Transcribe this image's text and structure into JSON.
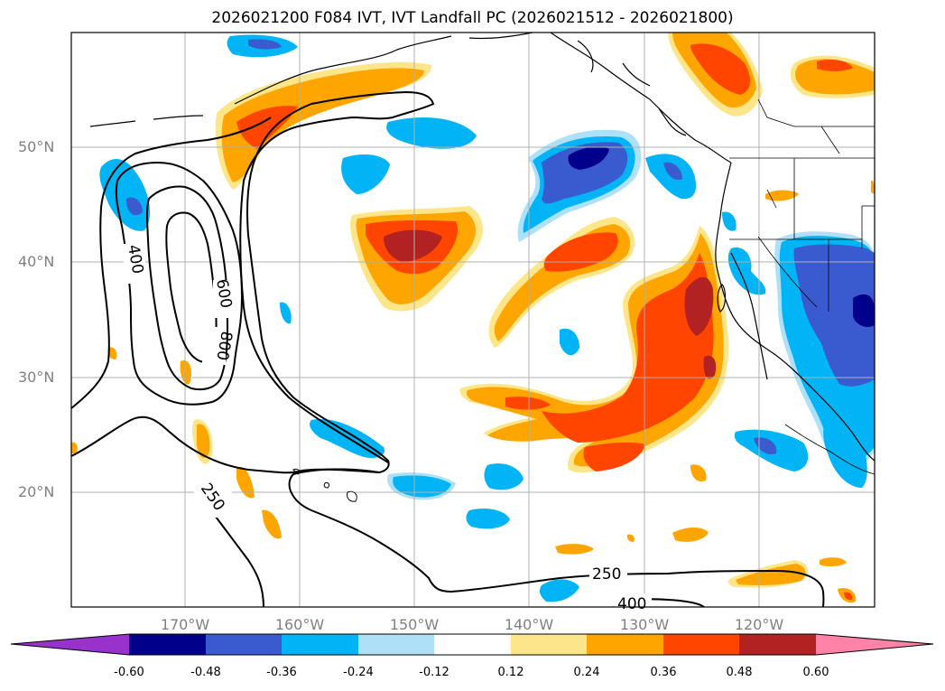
{
  "title": "2026021200 F084 IVT, IVT Landfall PC (2026021512 - 2026021800)",
  "axes": {
    "lat_labels": [
      "50°N",
      "40°N",
      "30°N",
      "20°N"
    ],
    "lon_labels": [
      "170°W",
      "160°W",
      "150°W",
      "140°W",
      "130°W",
      "120°W"
    ]
  },
  "contour_labels": [
    "400",
    "600",
    "800",
    "250",
    "250",
    "400"
  ],
  "colorbar": {
    "ticks": [
      "-0.60",
      "-0.48",
      "-0.36",
      "-0.24",
      "-0.12",
      "0.12",
      "0.24",
      "0.36",
      "0.48",
      "0.60"
    ],
    "colors": [
      "#9932cc",
      "#00008b",
      "#3a5bd0",
      "#00b4f5",
      "#aee0f8",
      "#ffffff",
      "#fde68a",
      "#ffa500",
      "#ff4500",
      "#b22222",
      "#ff82a8"
    ]
  },
  "colors": {
    "grid": "#b0b0b0",
    "coast": "#000000"
  }
}
